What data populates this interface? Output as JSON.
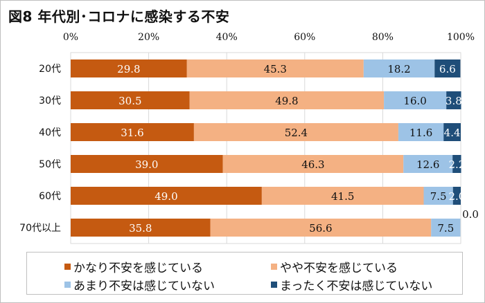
{
  "chart_data": {
    "type": "bar",
    "orientation": "horizontal",
    "stacked": "percent",
    "title": "図8 年代別･コロナに感染する不安",
    "xlabel": "",
    "ylabel": "",
    "xlim": [
      0,
      100
    ],
    "xticks": [
      "0%",
      "20%",
      "40%",
      "60%",
      "80%",
      "100%"
    ],
    "grid": true,
    "legend_position": "bottom",
    "categories": [
      "20代",
      "30代",
      "40代",
      "50代",
      "60代",
      "70代以上"
    ],
    "series": [
      {
        "name": "かなり不安を感じている",
        "color": "#c55a11",
        "label_color": "#ffffff",
        "values": [
          29.8,
          30.5,
          31.6,
          39.0,
          49.0,
          35.8
        ]
      },
      {
        "name": "やや不安を感じている",
        "color": "#f4b183",
        "label_color": "#111111",
        "values": [
          45.3,
          49.8,
          52.4,
          46.3,
          41.5,
          56.6
        ]
      },
      {
        "name": "あまり不安は感じていない",
        "color": "#9dc3e6",
        "label_color": "#111111",
        "values": [
          18.2,
          16.0,
          11.6,
          12.6,
          7.5,
          7.5
        ]
      },
      {
        "name": "まったく不安は感じていない",
        "color": "#1f4e79",
        "label_color": "#ffffff",
        "values": [
          6.6,
          3.8,
          4.4,
          2.2,
          2.0,
          0.0
        ]
      }
    ],
    "value_labels": [
      [
        "29.8",
        "45.3",
        "18.2",
        "6.6"
      ],
      [
        "30.5",
        "49.8",
        "16.0",
        "3.8"
      ],
      [
        "31.6",
        "52.4",
        "11.6",
        "4.4"
      ],
      [
        "39.0",
        "46.3",
        "12.6",
        "2.2"
      ],
      [
        "49.0",
        "41.5",
        "7.5",
        "2.0"
      ],
      [
        "35.8",
        "56.6",
        "7.5",
        "0.0"
      ]
    ]
  }
}
